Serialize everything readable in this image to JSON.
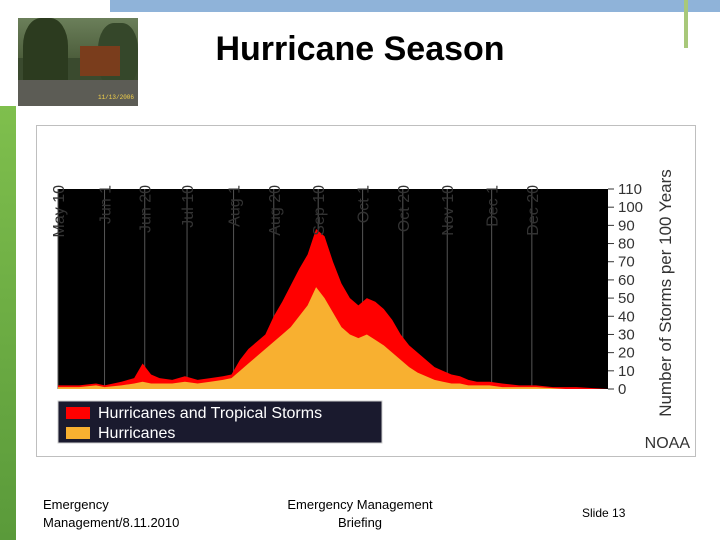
{
  "slide": {
    "title": "Hurricane Season",
    "footer_left": [
      "Emergency",
      "Management/8.11.2010"
    ],
    "footer_center": [
      "Emergency Management",
      "Briefing"
    ],
    "footer_right": "Slide 13",
    "photo_stamp": "11/13/2006"
  },
  "chart_data": {
    "type": "area",
    "title": "",
    "ylabel": "Number of Storms per 100 Years",
    "ylim": [
      0,
      110
    ],
    "yticks": [
      0,
      10,
      20,
      30,
      40,
      50,
      60,
      70,
      80,
      90,
      100,
      110
    ],
    "xlabel": "",
    "x_range_days": [
      0,
      260
    ],
    "date_ticks": [
      {
        "label": "May 10",
        "day": 0
      },
      {
        "label": "Jun 1",
        "day": 22
      },
      {
        "label": "Jun 20",
        "day": 41
      },
      {
        "label": "Jul 10",
        "day": 61
      },
      {
        "label": "Aug 1",
        "day": 83
      },
      {
        "label": "Aug 20",
        "day": 102
      },
      {
        "label": "Sep 10",
        "day": 123
      },
      {
        "label": "Oct 1",
        "day": 144
      },
      {
        "label": "Oct 20",
        "day": 163
      },
      {
        "label": "Nov 10",
        "day": 184
      },
      {
        "label": "Dec 1",
        "day": 205
      },
      {
        "label": "Dec 20",
        "day": 224
      }
    ],
    "series": [
      {
        "name": "Hurricanes and Tropical Storms",
        "color": "#ff0000",
        "points": [
          [
            0,
            2
          ],
          [
            10,
            2
          ],
          [
            18,
            3
          ],
          [
            22,
            2
          ],
          [
            30,
            4
          ],
          [
            36,
            6
          ],
          [
            40,
            14
          ],
          [
            44,
            8
          ],
          [
            48,
            6
          ],
          [
            54,
            5
          ],
          [
            60,
            7
          ],
          [
            66,
            5
          ],
          [
            72,
            6
          ],
          [
            78,
            7
          ],
          [
            82,
            8
          ],
          [
            86,
            16
          ],
          [
            90,
            22
          ],
          [
            94,
            26
          ],
          [
            98,
            30
          ],
          [
            102,
            40
          ],
          [
            106,
            48
          ],
          [
            110,
            57
          ],
          [
            114,
            66
          ],
          [
            118,
            74
          ],
          [
            122,
            88
          ],
          [
            126,
            84
          ],
          [
            130,
            70
          ],
          [
            134,
            58
          ],
          [
            138,
            50
          ],
          [
            142,
            46
          ],
          [
            146,
            50
          ],
          [
            150,
            48
          ],
          [
            154,
            44
          ],
          [
            158,
            38
          ],
          [
            162,
            30
          ],
          [
            166,
            24
          ],
          [
            170,
            20
          ],
          [
            174,
            16
          ],
          [
            178,
            12
          ],
          [
            182,
            10
          ],
          [
            186,
            8
          ],
          [
            190,
            7
          ],
          [
            194,
            5
          ],
          [
            198,
            4
          ],
          [
            204,
            4
          ],
          [
            210,
            3
          ],
          [
            218,
            2
          ],
          [
            226,
            2
          ],
          [
            234,
            1
          ],
          [
            245,
            1
          ],
          [
            260,
            0
          ]
        ]
      },
      {
        "name": "Hurricanes",
        "color": "#f8b030",
        "points": [
          [
            0,
            1
          ],
          [
            10,
            1
          ],
          [
            18,
            2
          ],
          [
            22,
            1
          ],
          [
            30,
            2
          ],
          [
            36,
            3
          ],
          [
            40,
            4
          ],
          [
            44,
            3
          ],
          [
            48,
            3
          ],
          [
            54,
            3
          ],
          [
            60,
            4
          ],
          [
            66,
            3
          ],
          [
            72,
            4
          ],
          [
            78,
            5
          ],
          [
            82,
            6
          ],
          [
            86,
            10
          ],
          [
            90,
            14
          ],
          [
            94,
            18
          ],
          [
            98,
            22
          ],
          [
            102,
            26
          ],
          [
            106,
            30
          ],
          [
            110,
            34
          ],
          [
            114,
            40
          ],
          [
            118,
            46
          ],
          [
            122,
            56
          ],
          [
            126,
            50
          ],
          [
            130,
            42
          ],
          [
            134,
            34
          ],
          [
            138,
            30
          ],
          [
            142,
            28
          ],
          [
            146,
            30
          ],
          [
            150,
            27
          ],
          [
            154,
            24
          ],
          [
            158,
            20
          ],
          [
            162,
            16
          ],
          [
            166,
            12
          ],
          [
            170,
            9
          ],
          [
            174,
            7
          ],
          [
            178,
            5
          ],
          [
            182,
            4
          ],
          [
            186,
            3
          ],
          [
            190,
            3
          ],
          [
            194,
            2
          ],
          [
            198,
            2
          ],
          [
            204,
            2
          ],
          [
            210,
            1
          ],
          [
            218,
            1
          ],
          [
            226,
            1
          ],
          [
            240,
            0
          ],
          [
            260,
            0
          ]
        ]
      }
    ],
    "legend": {
      "placement": "bottom-left",
      "entries": [
        "Hurricanes and Tropical Storms",
        "Hurricanes"
      ]
    },
    "source_label": "NOAA",
    "colors": {
      "plot_bg": "#000000",
      "outer_bg": "#ffffff",
      "frame": "#bfbfbf"
    }
  }
}
